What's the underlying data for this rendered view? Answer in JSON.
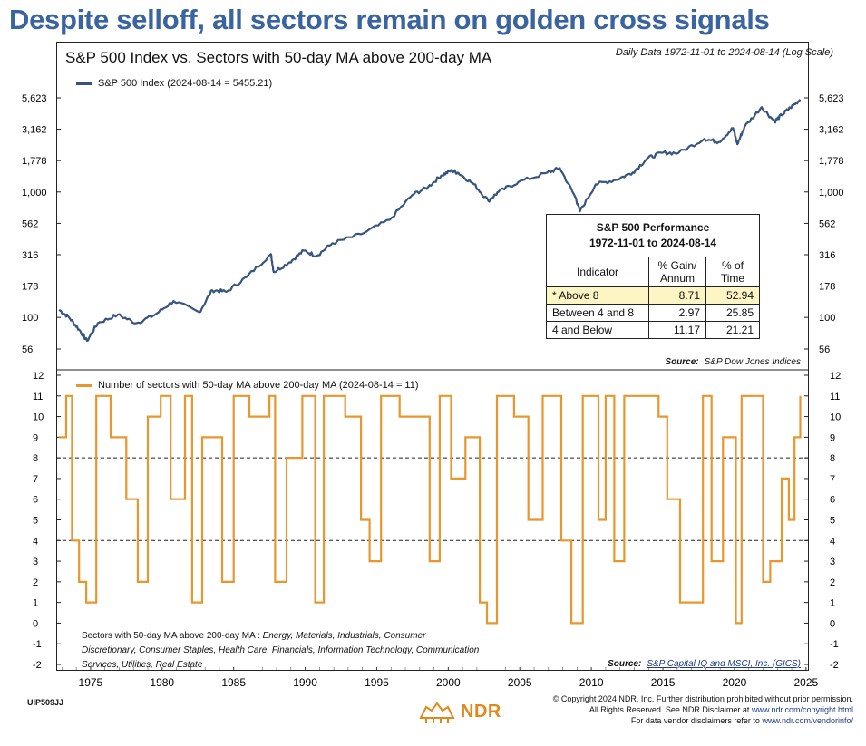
{
  "headline": "Despite selloff, all sectors remain on golden cross signals",
  "subtitle": "S&P 500 Index vs. Sectors with 50-day MA above 200-day MA",
  "daily_note": "Daily Data 1972-11-01 to 2024-08-14 (Log Scale)",
  "top_legend": "S&P 500 Index (2024-08-14 = 5455.21)",
  "top_source_label": "Source:",
  "top_source": "S&P Dow Jones Indices",
  "bottom_legend": "Number of sectors with 50-day MA above 200-day MA (2024-08-14 = 11)",
  "bottom_source_label": "Source:",
  "bottom_source": "S&P Capital IQ and MSCI, Inc. (GICS)",
  "sectors_note_label": "Sectors with 50-day MA above 200-day MA :",
  "sectors_note_text": "Energy, Materials, Industrials, Consumer Discretionary, Consumer Staples, Health Care, Financials, Information Technology, Communication Services, Utilities, Real Estate",
  "table": {
    "title_line1": "S&P 500 Performance",
    "title_line2": "1972-11-01 to 2024-08-14",
    "col_indicator": "Indicator",
    "col_gain": "% Gain/ Annum",
    "col_time": "% of Time",
    "rows": [
      {
        "indicator": "* Above 8",
        "gain": "8.71",
        "time": "52.94"
      },
      {
        "indicator": "Between 4 and 8",
        "gain": "2.97",
        "time": "25.85"
      },
      {
        "indicator": "4 and Below",
        "gain": "11.17",
        "time": "21.21"
      }
    ]
  },
  "footer_code": "UIP509JJ",
  "logo_text": "NDR",
  "copyright_line1": "© Copyright 2024 NDR, Inc. Further distribution prohibited without prior permission.",
  "copyright_line2": "All Rights Reserved. See NDR Disclaimer at",
  "copyright_link2": "www.ndr.com/copyright.html",
  "copyright_line3": "For data vendor disclaimers refer to",
  "copyright_link3": "www.ndr.com/vendorinfo/",
  "colors": {
    "headline": "#3a64a0",
    "sp500": "#35557f",
    "sectors": "#e8962e"
  },
  "chart_data": [
    {
      "type": "line",
      "title": "S&P 500 Index",
      "scale": "log",
      "y_ticks": [
        "56",
        "100",
        "178",
        "316",
        "562",
        "1,000",
        "1,778",
        "3,162",
        "5,623"
      ],
      "x_ticks": [
        "1975",
        "1980",
        "1985",
        "1990",
        "1995",
        "2000",
        "2005",
        "2010",
        "2015",
        "2020",
        "2025"
      ],
      "series": [
        {
          "name": "S&P 500 Index (2024-08-14 = 5455.21)",
          "x": [
            1972.8,
            1973.5,
            1974.2,
            1974.75,
            1975.5,
            1976.9,
            1978.2,
            1979.5,
            1980.8,
            1982.6,
            1983.5,
            1984.5,
            1985.9,
            1987.6,
            1987.8,
            1988.9,
            1989.9,
            1990.8,
            1991.9,
            1993.9,
            1995.9,
            1997.5,
            1998.6,
            1999.5,
            2000.2,
            2000.7,
            2001.8,
            2002.8,
            2003.5,
            2004.9,
            2006.9,
            2007.8,
            2008.9,
            2009.2,
            2010.3,
            2011.7,
            2012.9,
            2013.9,
            2014.9,
            2016.1,
            2017.9,
            2018.9,
            2019.9,
            2020.2,
            2020.7,
            2021.9,
            2022.8,
            2023.3,
            2023.9,
            2024.6
          ],
          "y": [
            115,
            100,
            80,
            65,
            90,
            105,
            90,
            105,
            135,
            110,
            165,
            160,
            210,
            320,
            230,
            275,
            340,
            310,
            390,
            460,
            600,
            950,
            1100,
            1350,
            1480,
            1420,
            1150,
            850,
            1000,
            1200,
            1420,
            1550,
            900,
            700,
            1150,
            1250,
            1430,
            1850,
            2050,
            2050,
            2650,
            2500,
            3230,
            2400,
            3300,
            4750,
            3650,
            4100,
            4700,
            5455
          ]
        }
      ]
    },
    {
      "type": "line",
      "title": "Number of sectors with 50-day MA above 200-day MA",
      "y_ticks": [
        "-2",
        "-1",
        "0",
        "1",
        "2",
        "3",
        "4",
        "5",
        "6",
        "7",
        "8",
        "9",
        "10",
        "11",
        "12"
      ],
      "ylim": [
        -2,
        12
      ],
      "reference_lines": [
        8,
        4
      ],
      "series": [
        {
          "name": "Number of sectors with 50-day MA above 200-day MA (2024-08-14 = 11)",
          "x": [
            1972.8,
            1973.3,
            1973.7,
            1974.2,
            1974.7,
            1975.4,
            1976.4,
            1977.5,
            1978.3,
            1979.0,
            1979.9,
            1980.6,
            1981.6,
            1982.1,
            1982.8,
            1984.2,
            1985.0,
            1986.1,
            1987.5,
            1987.9,
            1988.7,
            1989.8,
            1990.7,
            1991.3,
            1992.8,
            1993.9,
            1994.5,
            1995.3,
            1996.6,
            1998.7,
            1999.4,
            2000.2,
            2001.2,
            2002.2,
            2002.7,
            2003.4,
            2004.6,
            2005.6,
            2006.6,
            2007.9,
            2008.6,
            2009.4,
            2010.5,
            2011.0,
            2011.6,
            2012.3,
            2013.2,
            2014.7,
            2015.3,
            2016.2,
            2017.8,
            2018.4,
            2019.2,
            2020.1,
            2020.5,
            2021.1,
            2022.0,
            2022.5,
            2023.3,
            2023.8,
            2024.2,
            2024.6
          ],
          "y": [
            9,
            11,
            4,
            2,
            1,
            11,
            9,
            6,
            2,
            10,
            11,
            6,
            11,
            1,
            9,
            2,
            11,
            10,
            11,
            2,
            8,
            11,
            1,
            11,
            10,
            5,
            3,
            11,
            10,
            3,
            11,
            7,
            9,
            1,
            0,
            11,
            10,
            5,
            11,
            4,
            0,
            11,
            5,
            11,
            3,
            11,
            11,
            10,
            6,
            1,
            11,
            3,
            9,
            0,
            11,
            11,
            2,
            3,
            7,
            5,
            9,
            11
          ]
        }
      ]
    }
  ]
}
